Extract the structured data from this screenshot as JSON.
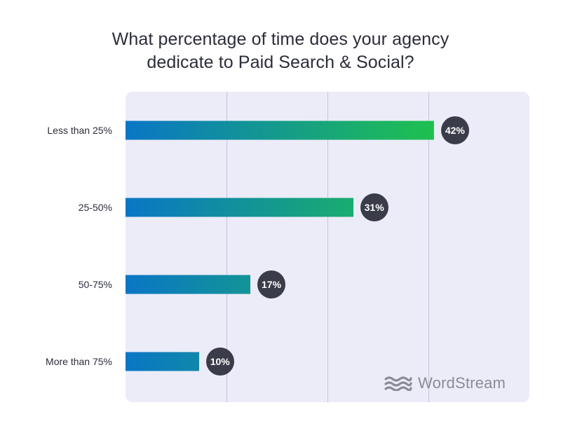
{
  "title_lines": [
    "What percentage of time does your agency",
    "dedicate to Paid Search & Social?"
  ],
  "brand": {
    "name": "WordStream",
    "icon": "wave-icon",
    "color": "#8a8b96"
  },
  "colors": {
    "bar_start": "#0a76c6",
    "bar_end": "#1fc04f",
    "badge": "#3a3c4a",
    "plot_bg": "#ececf8"
  },
  "chart_data": {
    "type": "bar",
    "orientation": "horizontal",
    "title": "What percentage of time does your agency dedicate to Paid Search & Social?",
    "categories": [
      "Less than 25%",
      "25-50%",
      "50-75%",
      "More than 75%"
    ],
    "values": [
      42,
      31,
      17,
      10
    ],
    "value_labels": [
      "42%",
      "31%",
      "17%",
      "10%"
    ],
    "xlim": [
      0,
      55
    ],
    "gridlines": [
      13.75,
      27.5,
      41.25
    ],
    "grid": true,
    "xlabel": "",
    "ylabel": ""
  }
}
